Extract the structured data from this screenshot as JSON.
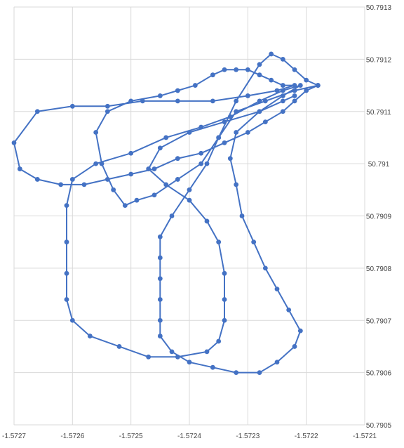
{
  "chart_data": {
    "type": "scatter",
    "mode": "lines+markers",
    "title": "",
    "xlabel": "",
    "ylabel": "",
    "xlim": [
      -1.5727,
      -1.5721
    ],
    "ylim": [
      50.7905,
      50.7913
    ],
    "x_ticks": [
      "-1.5727",
      "-1.5726",
      "-1.5725",
      "-1.5724",
      "-1.5723",
      "-1.5722",
      "-1.5721"
    ],
    "y_ticks": [
      "50.7913",
      "50.7912",
      "50.7911",
      "50.791",
      "50.7909",
      "50.7908",
      "50.7907",
      "50.7906",
      "50.7905"
    ],
    "grid": true,
    "legend": "none",
    "series_color": "#4472C4",
    "gridline_color": "#d9d9d9",
    "series": [
      {
        "points": [
          [
            -1.57218,
            50.79115
          ],
          [
            -1.5722,
            50.79116
          ],
          [
            -1.57222,
            50.79118
          ],
          [
            -1.57224,
            50.7912
          ],
          [
            -1.57226,
            50.79121
          ],
          [
            -1.57228,
            50.79119
          ],
          [
            -1.57232,
            50.79112
          ],
          [
            -1.57235,
            50.79105
          ],
          [
            -1.57238,
            50.791
          ],
          [
            -1.57242,
            50.79097
          ],
          [
            -1.57246,
            50.79094
          ],
          [
            -1.57249,
            50.79093
          ],
          [
            -1.57251,
            50.79092
          ],
          [
            -1.57253,
            50.79095
          ],
          [
            -1.57255,
            50.791
          ],
          [
            -1.57256,
            50.79106
          ],
          [
            -1.57254,
            50.7911
          ],
          [
            -1.5725,
            50.79112
          ],
          [
            -1.57245,
            50.79113
          ],
          [
            -1.57242,
            50.79114
          ],
          [
            -1.57239,
            50.79115
          ],
          [
            -1.57236,
            50.79117
          ],
          [
            -1.57234,
            50.79118
          ],
          [
            -1.57232,
            50.79118
          ],
          [
            -1.5723,
            50.79118
          ],
          [
            -1.57228,
            50.79117
          ],
          [
            -1.57226,
            50.79116
          ],
          [
            -1.57224,
            50.79115
          ],
          [
            -1.57222,
            50.79115
          ],
          [
            -1.57225,
            50.79114
          ],
          [
            -1.5723,
            50.79113
          ],
          [
            -1.57236,
            50.79112
          ],
          [
            -1.57242,
            50.79112
          ],
          [
            -1.57248,
            50.79112
          ],
          [
            -1.57254,
            50.79111
          ],
          [
            -1.5726,
            50.79111
          ],
          [
            -1.57266,
            50.7911
          ],
          [
            -1.5727,
            50.79104
          ],
          [
            -1.57269,
            50.79099
          ],
          [
            -1.57266,
            50.79097
          ],
          [
            -1.57262,
            50.79096
          ],
          [
            -1.57258,
            50.79096
          ],
          [
            -1.57254,
            50.79097
          ],
          [
            -1.5725,
            50.79098
          ],
          [
            -1.57246,
            50.79099
          ],
          [
            -1.57242,
            50.79101
          ],
          [
            -1.57238,
            50.79102
          ],
          [
            -1.57234,
            50.79104
          ],
          [
            -1.5723,
            50.79106
          ],
          [
            -1.57227,
            50.79108
          ],
          [
            -1.57224,
            50.7911
          ],
          [
            -1.57222,
            50.79112
          ],
          [
            -1.5722,
            50.79114
          ],
          [
            -1.57218,
            50.79115
          ],
          [
            -1.57222,
            50.79114
          ],
          [
            -1.57227,
            50.79112
          ],
          [
            -1.57232,
            50.7911
          ],
          [
            -1.57235,
            50.79105
          ],
          [
            -1.57237,
            50.791
          ],
          [
            -1.5724,
            50.79095
          ],
          [
            -1.57243,
            50.7909
          ],
          [
            -1.57245,
            50.79086
          ],
          [
            -1.57245,
            50.79082
          ],
          [
            -1.57245,
            50.79078
          ],
          [
            -1.57245,
            50.79074
          ],
          [
            -1.57245,
            50.7907
          ],
          [
            -1.57245,
            50.79067
          ],
          [
            -1.57243,
            50.79064
          ],
          [
            -1.5724,
            50.79062
          ],
          [
            -1.57236,
            50.79061
          ],
          [
            -1.57232,
            50.7906
          ],
          [
            -1.57228,
            50.7906
          ],
          [
            -1.57225,
            50.79062
          ],
          [
            -1.57222,
            50.79065
          ],
          [
            -1.57221,
            50.79068
          ],
          [
            -1.57223,
            50.79072
          ],
          [
            -1.57225,
            50.79076
          ],
          [
            -1.57227,
            50.7908
          ],
          [
            -1.57229,
            50.79085
          ],
          [
            -1.57231,
            50.7909
          ],
          [
            -1.57232,
            50.79096
          ],
          [
            -1.57233,
            50.79101
          ],
          [
            -1.57232,
            50.79106
          ],
          [
            -1.57228,
            50.7911
          ],
          [
            -1.57224,
            50.79113
          ],
          [
            -1.57221,
            50.79115
          ],
          [
            -1.57224,
            50.79114
          ],
          [
            -1.57228,
            50.79112
          ],
          [
            -1.57233,
            50.79109
          ],
          [
            -1.57238,
            50.79107
          ],
          [
            -1.57244,
            50.79105
          ],
          [
            -1.5725,
            50.79102
          ],
          [
            -1.57256,
            50.791
          ],
          [
            -1.5726,
            50.79097
          ],
          [
            -1.57261,
            50.79092
          ],
          [
            -1.57261,
            50.79085
          ],
          [
            -1.57261,
            50.79079
          ],
          [
            -1.57261,
            50.79074
          ],
          [
            -1.5726,
            50.7907
          ],
          [
            -1.57257,
            50.79067
          ],
          [
            -1.57252,
            50.79065
          ],
          [
            -1.57247,
            50.79063
          ],
          [
            -1.57242,
            50.79063
          ],
          [
            -1.57237,
            50.79064
          ],
          [
            -1.57235,
            50.79066
          ],
          [
            -1.57234,
            50.7907
          ],
          [
            -1.57234,
            50.79074
          ],
          [
            -1.57234,
            50.79079
          ],
          [
            -1.57235,
            50.79085
          ],
          [
            -1.57237,
            50.79089
          ],
          [
            -1.5724,
            50.79093
          ],
          [
            -1.57244,
            50.79096
          ],
          [
            -1.57247,
            50.79099
          ],
          [
            -1.57245,
            50.79103
          ],
          [
            -1.5724,
            50.79106
          ],
          [
            -1.57234,
            50.79108
          ],
          [
            -1.57228,
            50.7911
          ],
          [
            -1.57224,
            50.79112
          ],
          [
            -1.57222,
            50.79113
          ]
        ]
      }
    ]
  }
}
